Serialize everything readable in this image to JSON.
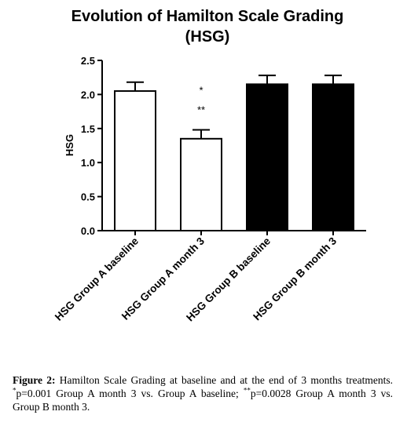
{
  "chart_data": {
    "type": "bar",
    "title_lines": [
      "Evolution of Hamilton Scale Grading",
      "(HSG)"
    ],
    "ylabel": "HSG",
    "xlabel": "",
    "ylim": [
      0,
      2.5
    ],
    "yticks": [
      "0.0",
      "0.5",
      "1.0",
      "1.5",
      "2.0",
      "2.5"
    ],
    "grid": false,
    "categories": [
      "HSG Group A baseline",
      "HSG Group A month 3",
      "HSG Group B baseline",
      "HSG Group B month 3"
    ],
    "values": [
      2.05,
      1.35,
      2.15,
      2.15
    ],
    "errors": [
      0.13,
      0.13,
      0.13,
      0.13
    ],
    "bar_fills": [
      "#ffffff",
      "#ffffff",
      "#000000",
      "#000000"
    ],
    "annotations": [
      {
        "category_index": 1,
        "text": "*"
      },
      {
        "category_index": 1,
        "text": "**"
      }
    ]
  },
  "caption": {
    "label": "Figure 2:",
    "lines": [
      " Hamilton Scale Grading at baseline and at the end of 3 months treatments. ",
      "p=0.001 Group A month 3 vs. Group A baseline; ",
      "p=0.0028 Group A month 3 vs. Group B month 3."
    ],
    "marks": [
      "*",
      "**"
    ]
  }
}
